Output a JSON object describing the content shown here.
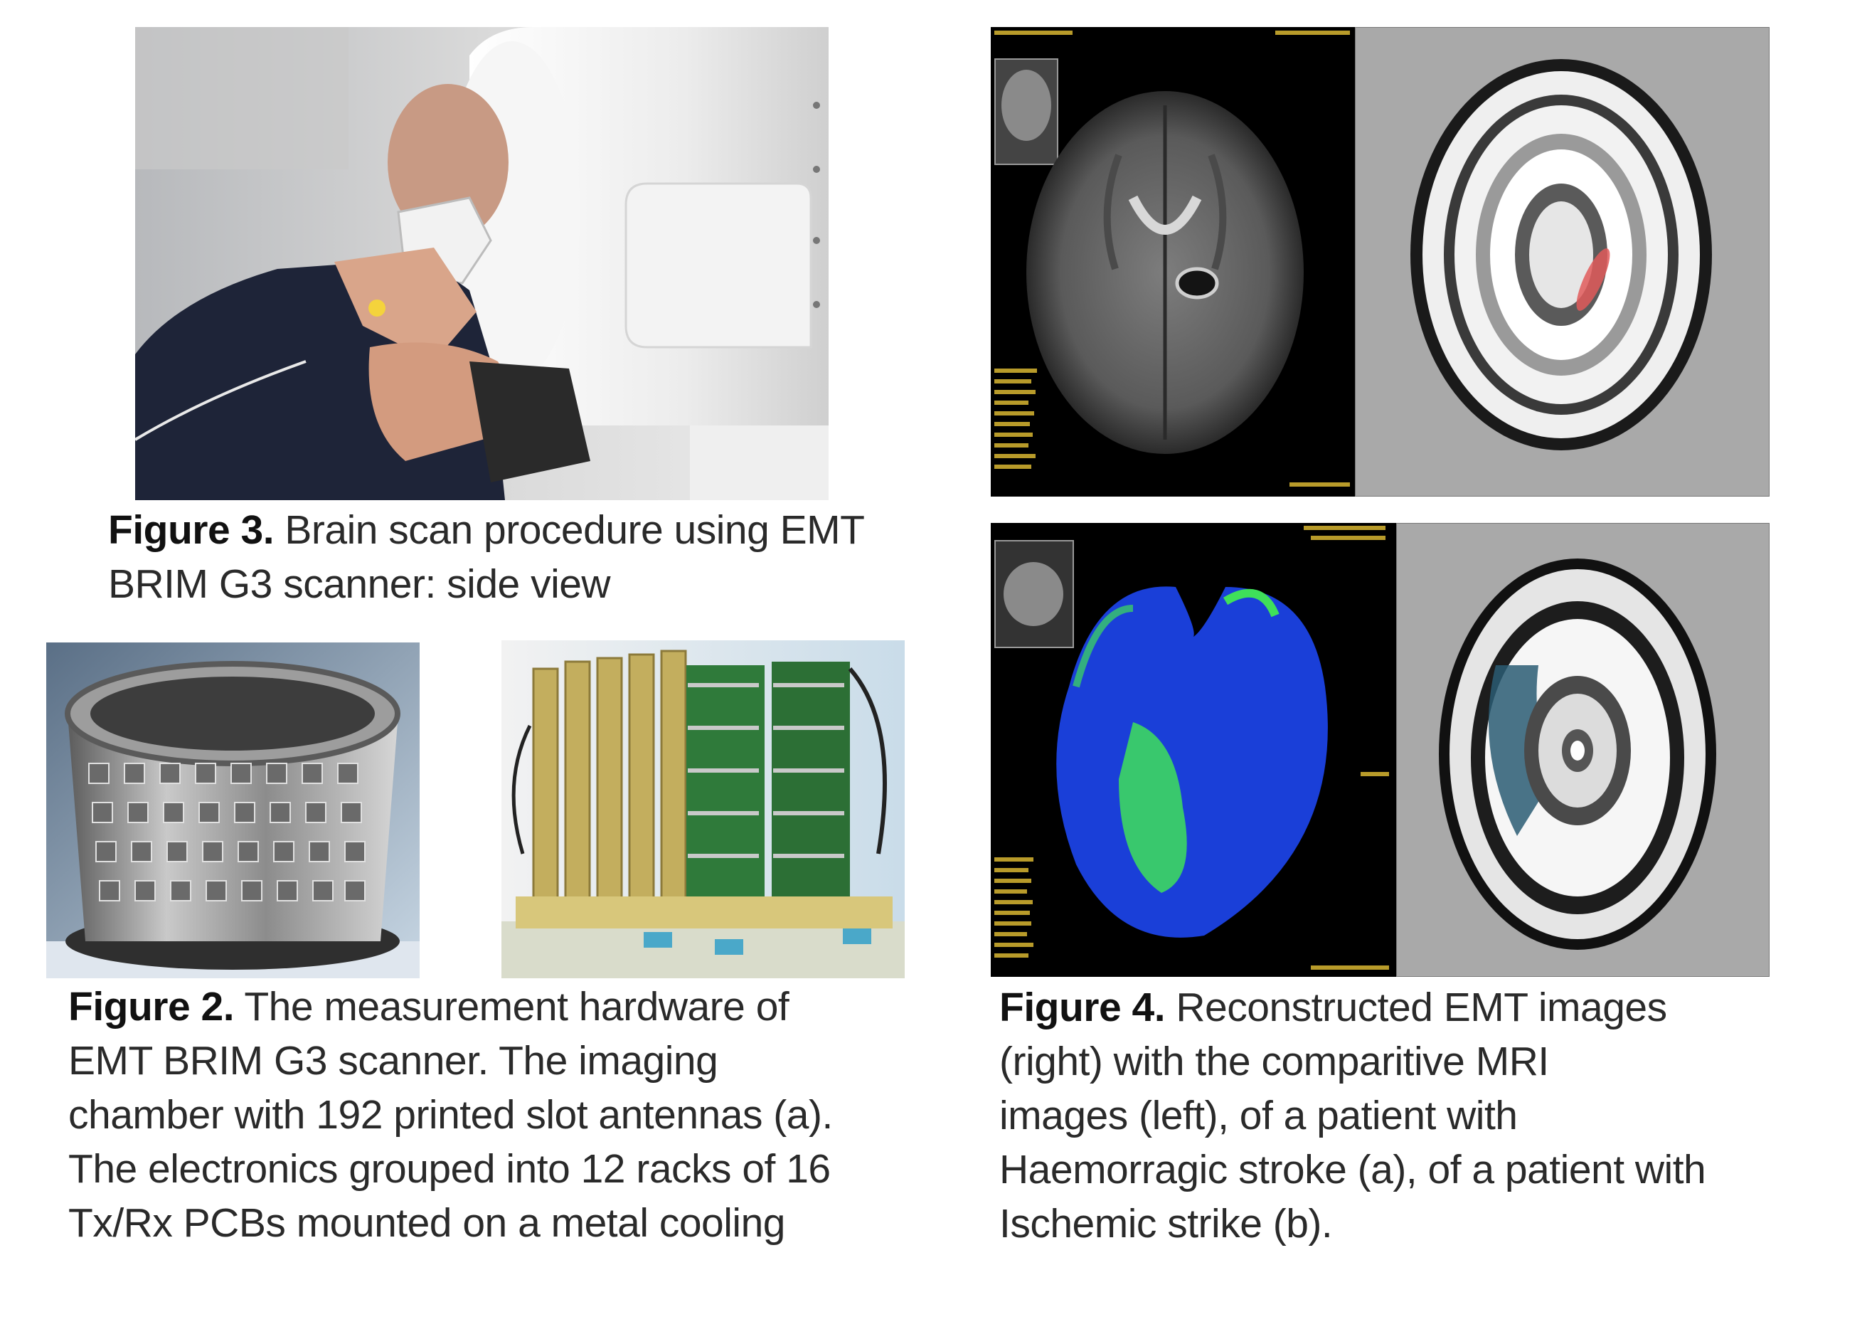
{
  "figure3": {
    "label": "Figure 3.",
    "lines": [
      "Brain scan procedure using EMT",
      "BRIM G3 scanner: side view"
    ]
  },
  "figure2": {
    "label": "Figure 2.",
    "lines": [
      "The measurement hardware of",
      "EMT BRIM G3 scanner. The imaging",
      "chamber with 192 printed slot antennas (a).",
      "The electronics grouped into 12 racks of 16",
      "Tx/Rx PCBs mounted on a metal cooling"
    ]
  },
  "figure4": {
    "label": "Figure 4.",
    "lines": [
      "Reconstructed EMT images",
      "(right) with the comparitive MRI",
      "images (left), of a patient with",
      "Haemorragic stroke (a), of a patient with",
      "Ischemic strike (b)."
    ]
  },
  "colors": {
    "mri_background": "#000000",
    "emt_background": "#a9a9a9",
    "hemorrhage_highlight": "#e05a5a",
    "perfusion_blue": "#1a3fd8",
    "perfusion_green": "#3fe05a",
    "scanner_white": "#eeeeee"
  }
}
